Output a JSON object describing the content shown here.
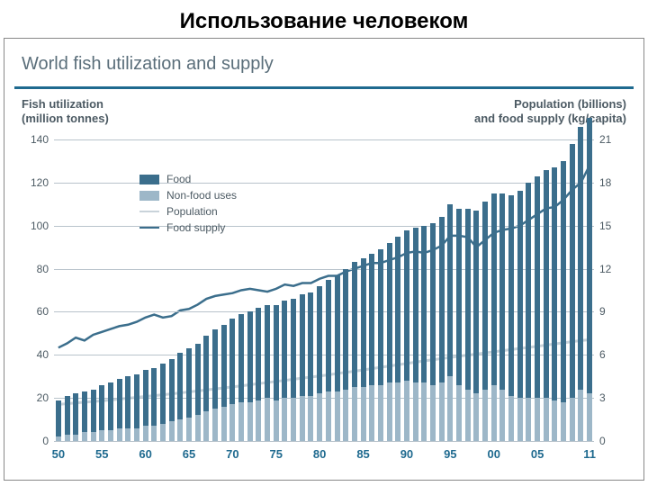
{
  "slide_title": "Использование человеком",
  "chart": {
    "type": "bar+line",
    "title": "World fish utilization and supply",
    "background_color": "#ffffff",
    "grid_color": "#b8c3cb",
    "rule_color": "#1f6a8f",
    "y_left": {
      "title_line1": "Fish utilization",
      "title_line2": "(million tonnes)",
      "min": 0,
      "max": 140,
      "step": 20,
      "ticks": [
        0,
        20,
        40,
        60,
        80,
        100,
        120,
        140
      ]
    },
    "y_right": {
      "title_line1": "Population (billions)",
      "title_line2": "and food supply (kg/capita)",
      "min": 0,
      "max": 21,
      "step": 3,
      "ticks": [
        0,
        3,
        6,
        9,
        12,
        15,
        18,
        21
      ]
    },
    "x": {
      "start": 50,
      "end": 11,
      "labels": [
        "50",
        "55",
        "60",
        "65",
        "70",
        "75",
        "80",
        "85",
        "90",
        "95",
        "00",
        "05",
        "11"
      ]
    },
    "legend": {
      "items": [
        {
          "kind": "box",
          "color": "#3b6e8c",
          "label": "Food"
        },
        {
          "kind": "box",
          "color": "#9db7c8",
          "label": "Non-food uses"
        },
        {
          "kind": "line",
          "color": "#c9d3da",
          "label": "Population"
        },
        {
          "kind": "line",
          "color": "#3b6e8c",
          "label": "Food supply"
        }
      ]
    },
    "colors": {
      "food_bar": "#3b6e8c",
      "nonfood_bar": "#9db7c8",
      "population_line": "#c9d3da",
      "supply_line": "#3b6e8c",
      "xlabel": "#1f6a8f",
      "text": "#4c5a63"
    },
    "bar_width_ratio": 0.62,
    "series": {
      "years_count": 62,
      "nonfood": [
        2,
        3,
        3,
        4,
        4,
        5,
        5,
        6,
        6,
        6,
        7,
        7,
        8,
        9,
        10,
        11,
        12,
        14,
        15,
        16,
        17,
        18,
        18,
        19,
        20,
        19,
        20,
        20,
        21,
        21,
        22,
        23,
        23,
        24,
        25,
        25,
        26,
        26,
        27,
        27,
        28,
        27,
        27,
        26,
        27,
        30,
        26,
        24,
        22,
        24,
        26,
        24,
        21,
        20,
        20,
        20,
        20,
        19,
        18,
        20,
        24,
        22
      ],
      "food": [
        17,
        18,
        19,
        19,
        20,
        21,
        22,
        23,
        24,
        25,
        26,
        27,
        28,
        29,
        31,
        32,
        33,
        35,
        37,
        38,
        40,
        41,
        42,
        43,
        43,
        44,
        45,
        46,
        47,
        48,
        50,
        52,
        54,
        56,
        58,
        60,
        61,
        63,
        65,
        68,
        70,
        72,
        73,
        75,
        77,
        80,
        82,
        84,
        85,
        87,
        89,
        91,
        93,
        96,
        100,
        103,
        106,
        108,
        112,
        118,
        122,
        128
      ],
      "population": [
        2.55,
        2.6,
        2.65,
        2.7,
        2.75,
        2.8,
        2.86,
        2.92,
        2.98,
        3.04,
        3.1,
        3.16,
        3.22,
        3.28,
        3.35,
        3.42,
        3.49,
        3.56,
        3.63,
        3.7,
        3.77,
        3.84,
        3.92,
        4.0,
        4.07,
        4.15,
        4.22,
        4.3,
        4.38,
        4.45,
        4.53,
        4.61,
        4.7,
        4.78,
        4.86,
        4.95,
        5.04,
        5.13,
        5.22,
        5.31,
        5.4,
        5.49,
        5.58,
        5.66,
        5.74,
        5.82,
        5.9,
        5.98,
        6.06,
        6.14,
        6.21,
        6.29,
        6.37,
        6.45,
        6.52,
        6.6,
        6.68,
        6.76,
        6.84,
        6.92,
        7.0,
        7.05
      ],
      "food_supply": [
        6.5,
        6.8,
        7.2,
        7.0,
        7.4,
        7.6,
        7.8,
        8.0,
        8.1,
        8.3,
        8.6,
        8.8,
        8.6,
        8.7,
        9.1,
        9.2,
        9.5,
        9.9,
        10.1,
        10.2,
        10.3,
        10.5,
        10.6,
        10.5,
        10.4,
        10.6,
        10.9,
        10.8,
        11.0,
        11.0,
        11.3,
        11.5,
        11.5,
        11.8,
        12.0,
        12.2,
        12.4,
        12.4,
        12.6,
        12.8,
        13.1,
        13.2,
        13.1,
        13.3,
        13.6,
        14.3,
        14.3,
        14.2,
        13.5,
        14.0,
        14.5,
        14.7,
        14.8,
        15.0,
        15.4,
        15.8,
        16.2,
        16.3,
        16.8,
        17.5,
        18.0,
        19.2
      ]
    }
  }
}
